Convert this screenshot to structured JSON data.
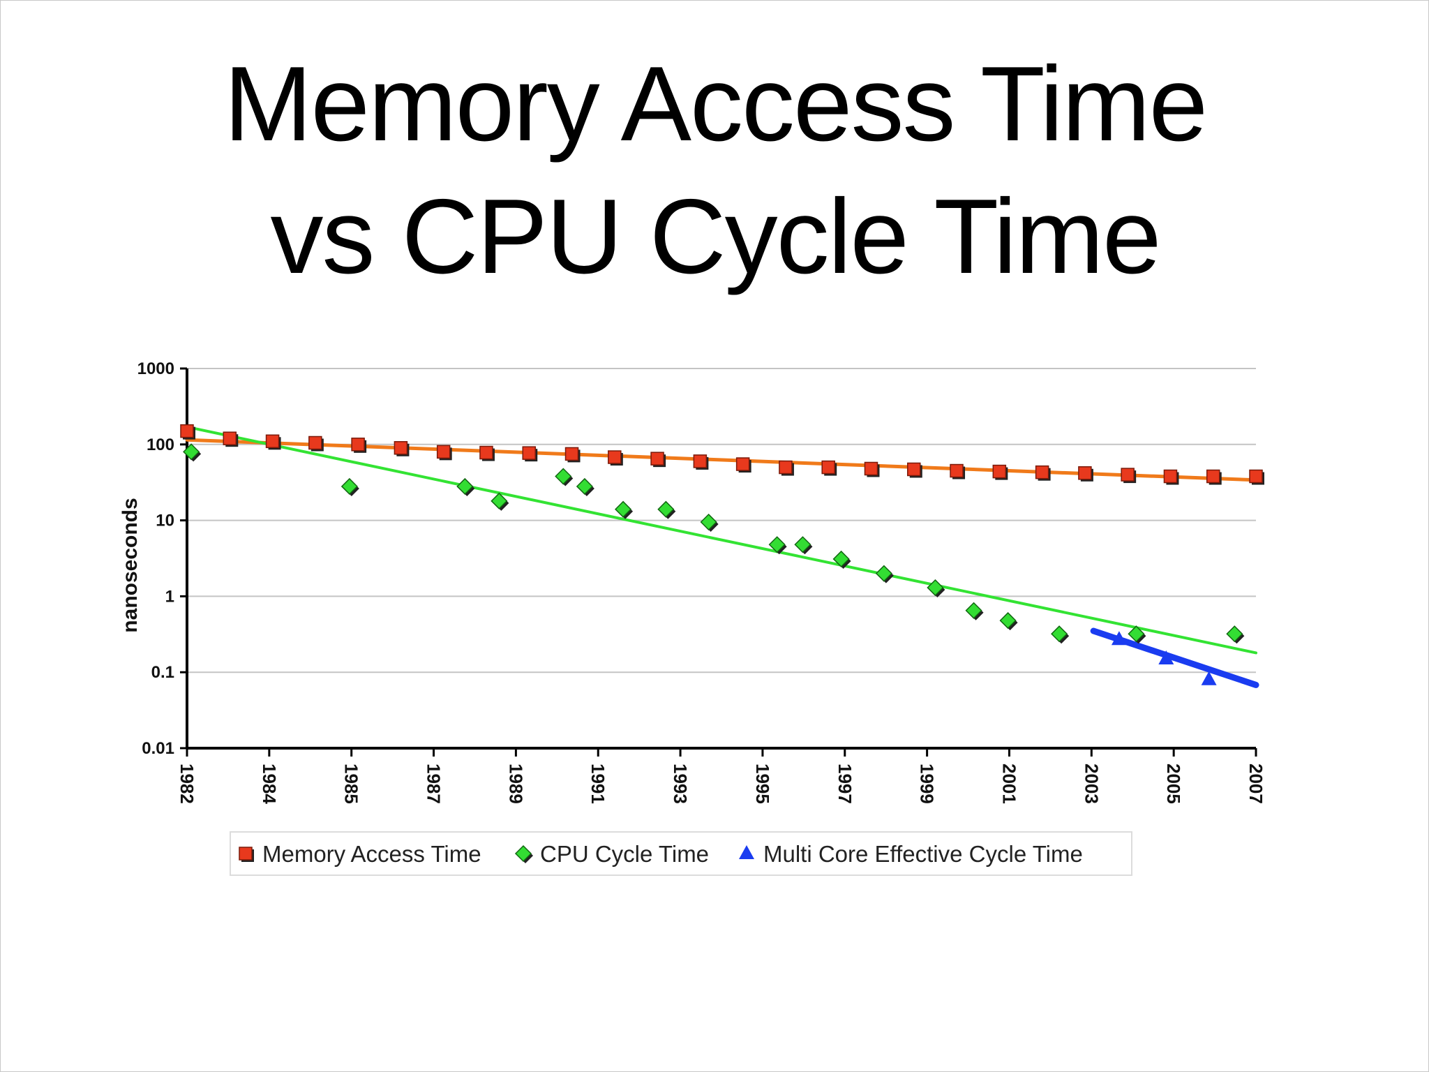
{
  "slide": {
    "title_line1": "Memory Access Time",
    "title_line2": "vs CPU Cycle Time"
  },
  "chart_data": {
    "type": "scatter",
    "ylabel": "nanoseconds",
    "xlabel": "",
    "yscale": "log",
    "ylim": [
      0.01,
      1000
    ],
    "xlim": [
      1982,
      2007
    ],
    "y_ticks": [
      "1000",
      "100",
      "10",
      "1",
      "0.1",
      "0.01"
    ],
    "x_ticks": [
      "1982",
      "1984",
      "1985",
      "1987",
      "1989",
      "1991",
      "1993",
      "1995",
      "1997",
      "1999",
      "2001",
      "2003",
      "2005",
      "2007"
    ],
    "grid": true,
    "legend_position": "bottom",
    "series": [
      {
        "name": "Memory Access Time",
        "marker": "square",
        "color": "#e8391d",
        "points": [
          [
            1982.0,
            150
          ],
          [
            1983.0,
            120
          ],
          [
            1984.0,
            110
          ],
          [
            1985.0,
            105
          ],
          [
            1986.0,
            100
          ],
          [
            1987.0,
            90
          ],
          [
            1988.0,
            80
          ],
          [
            1989.0,
            78
          ],
          [
            1990.0,
            77
          ],
          [
            1991.0,
            75
          ],
          [
            1992.0,
            68
          ],
          [
            1993.0,
            65
          ],
          [
            1994.0,
            60
          ],
          [
            1995.0,
            55
          ],
          [
            1996.0,
            50
          ],
          [
            1997.0,
            50
          ],
          [
            1998.0,
            48
          ],
          [
            1999.0,
            47
          ],
          [
            2000.0,
            45
          ],
          [
            2001.0,
            44
          ],
          [
            2002.0,
            43
          ],
          [
            2003.0,
            42
          ],
          [
            2004.0,
            40
          ],
          [
            2005.0,
            38
          ],
          [
            2006.0,
            38
          ],
          [
            2007.0,
            38
          ]
        ],
        "trend": {
          "color": "#f07a1a",
          "from": [
            1982,
            115
          ],
          "to": [
            2007,
            34
          ]
        }
      },
      {
        "name": "CPU Cycle Time",
        "marker": "diamond",
        "color": "#33dd33",
        "points": [
          [
            1982.1,
            80
          ],
          [
            1985.8,
            28
          ],
          [
            1988.5,
            28
          ],
          [
            1989.3,
            18
          ],
          [
            1990.8,
            38
          ],
          [
            1991.3,
            28
          ],
          [
            1992.2,
            14
          ],
          [
            1993.2,
            14
          ],
          [
            1994.2,
            9.5
          ],
          [
            1995.8,
            4.8
          ],
          [
            1996.4,
            4.8
          ],
          [
            1997.3,
            3.1
          ],
          [
            1998.3,
            2.0
          ],
          [
            1999.5,
            1.3
          ],
          [
            2000.4,
            0.65
          ],
          [
            2001.2,
            0.48
          ],
          [
            2002.4,
            0.32
          ],
          [
            2004.2,
            0.32
          ],
          [
            2006.5,
            0.32
          ]
        ],
        "trend": {
          "color": "#33e333",
          "from": [
            1982,
            170
          ],
          "to": [
            2007,
            0.18
          ]
        }
      },
      {
        "name": "Multi Core Effective Cycle Time",
        "marker": "triangle",
        "color": "#1a3cf0",
        "points": [
          [
            2003.8,
            0.27
          ],
          [
            2004.9,
            0.15
          ],
          [
            2005.9,
            0.08
          ]
        ],
        "trend": {
          "color": "#1a3cf0",
          "from": [
            2003.2,
            0.35
          ],
          "to": [
            2007,
            0.068
          ]
        }
      }
    ]
  }
}
